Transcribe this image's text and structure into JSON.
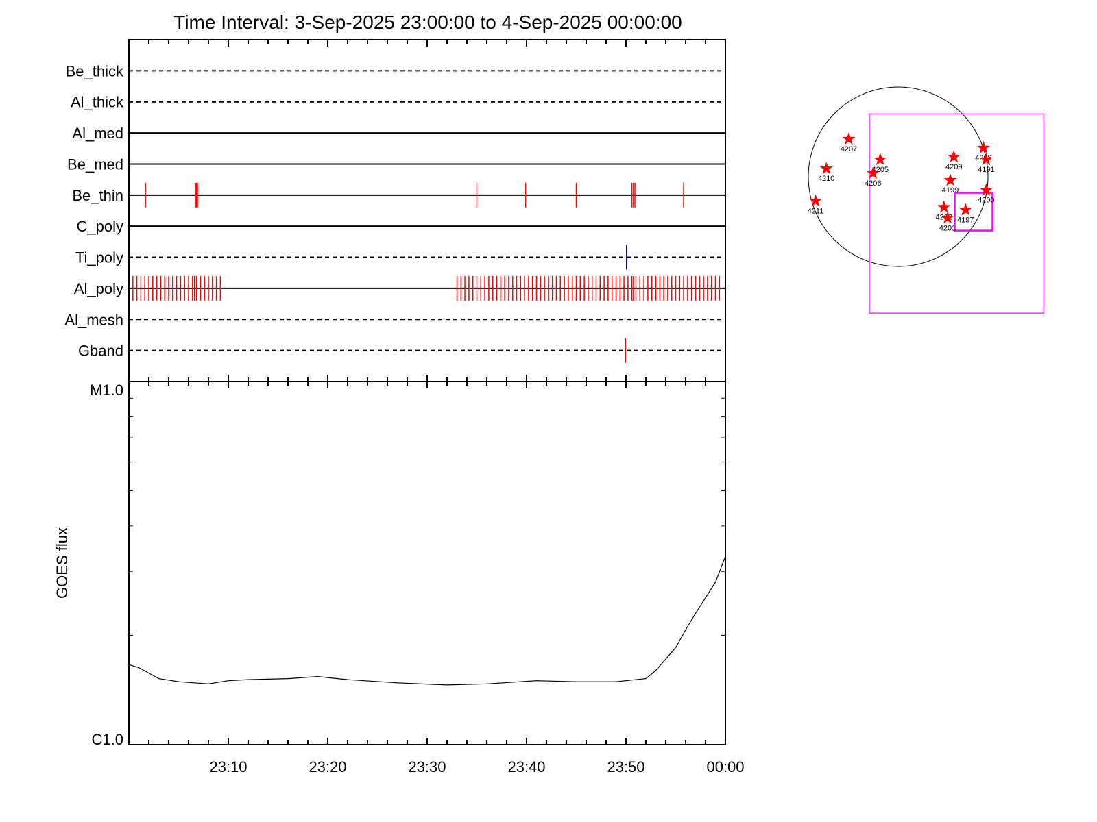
{
  "chart_data": [
    {
      "type": "events",
      "title": "Time Interval:  3-Sep-2025 23:00:00 to  4-Sep-2025 00:00:00",
      "xlim": [
        "23:00",
        "00:00"
      ],
      "xticks": [
        "23:10",
        "23:20",
        "23:30",
        "23:40",
        "23:50",
        "00:00"
      ],
      "x_minor_divisions": 5,
      "rows": [
        {
          "name": "Be_thick",
          "style": "dashed",
          "color": "#ff0000",
          "events": []
        },
        {
          "name": "Al_thick",
          "style": "dashed",
          "color": "#ff0000",
          "events": []
        },
        {
          "name": "Al_med",
          "style": "solid",
          "color": "#ff0000",
          "events": []
        },
        {
          "name": "Be_med",
          "style": "solid",
          "color": "#ff0000",
          "events": []
        },
        {
          "name": "Be_thin",
          "style": "solid",
          "color": "#ff0000",
          "events": [
            "23:01:40",
            "23:06:42",
            "23:06:48",
            "23:06:54",
            "23:35:00",
            "23:39:54",
            "23:45:00",
            "23:50:36",
            "23:50:45",
            "23:50:54",
            "23:55:48"
          ]
        },
        {
          "name": "C_poly",
          "style": "solid",
          "color": "#ff0000",
          "events": []
        },
        {
          "name": "Ti_poly",
          "style": "dashed",
          "color": "#0000ff",
          "events": [
            "23:50:03"
          ]
        },
        {
          "name": "Al_poly",
          "style": "solid",
          "color": "#ff0000",
          "events": [
            "23:00:24",
            "23:00:48",
            "23:01:12",
            "23:01:36",
            "23:02:00",
            "23:02:24",
            "23:02:48",
            "23:03:12",
            "23:03:36",
            "23:04:00",
            "23:04:24",
            "23:04:48",
            "23:05:12",
            "23:05:36",
            "23:06:00",
            "23:06:24",
            "23:06:36",
            "23:06:48",
            "23:07:12",
            "23:07:36",
            "23:08:00",
            "23:08:24",
            "23:08:48",
            "23:09:12",
            "23:33:00",
            "23:33:24",
            "23:33:48",
            "23:34:12",
            "23:34:36",
            "23:35:00",
            "23:35:24",
            "23:35:48",
            "23:36:12",
            "23:36:36",
            "23:37:00",
            "23:37:24",
            "23:37:48",
            "23:38:12",
            "23:38:36",
            "23:39:00",
            "23:39:24",
            "23:39:48",
            "23:40:12",
            "23:40:36",
            "23:41:00",
            "23:41:24",
            "23:41:48",
            "23:42:12",
            "23:42:36",
            "23:43:00",
            "23:43:24",
            "23:43:48",
            "23:44:12",
            "23:44:36",
            "23:45:00",
            "23:45:24",
            "23:45:48",
            "23:46:12",
            "23:46:36",
            "23:47:00",
            "23:47:24",
            "23:47:48",
            "23:48:12",
            "23:48:36",
            "23:49:00",
            "23:49:24",
            "23:49:48",
            "23:50:12",
            "23:50:36",
            "23:50:45",
            "23:51:00",
            "23:51:24",
            "23:51:48",
            "23:52:12",
            "23:52:36",
            "23:53:00",
            "23:53:24",
            "23:53:48",
            "23:54:12",
            "23:54:36",
            "23:55:00",
            "23:55:24",
            "23:55:48",
            "23:56:12",
            "23:56:36",
            "23:57:00",
            "23:57:24",
            "23:57:48",
            "23:58:12",
            "23:58:36",
            "23:59:00",
            "23:59:24"
          ]
        },
        {
          "name": "Al_mesh",
          "style": "dashed",
          "color": "#ff0000",
          "events": []
        },
        {
          "name": "Gband",
          "style": "dashed",
          "color": "#ff0000",
          "events": [
            "23:49:57"
          ]
        }
      ]
    },
    {
      "type": "line",
      "ylabel": "GOES flux",
      "ylog": true,
      "ylim": [
        1e-06,
        1e-05
      ],
      "yticks": [
        {
          "value": 1e-06,
          "label": "C1.0"
        },
        {
          "value": 1e-05,
          "label": "M1.0"
        }
      ],
      "yminorticks": [
        2e-06,
        3e-06,
        4e-06,
        5e-06,
        6e-06,
        7e-06,
        8e-06,
        9e-06
      ],
      "xlim": [
        "23:00",
        "00:00"
      ],
      "xticks": [
        "23:10",
        "23:20",
        "23:30",
        "23:40",
        "23:50",
        "00:00"
      ],
      "x_minor_divisions": 5,
      "color": "#000000",
      "x": [
        "23:00",
        "23:01",
        "23:03",
        "23:05",
        "23:08",
        "23:10",
        "23:12",
        "23:16",
        "23:19",
        "23:22",
        "23:27",
        "23:32",
        "23:36",
        "23:41",
        "23:45",
        "23:49",
        "23:52",
        "23:53",
        "23:55",
        "23:56",
        "23:57",
        "23:59",
        "00:00"
      ],
      "values": [
        1.66e-06,
        1.63e-06,
        1.52e-06,
        1.49e-06,
        1.47e-06,
        1.5e-06,
        1.51e-06,
        1.52e-06,
        1.54e-06,
        1.51e-06,
        1.48e-06,
        1.46e-06,
        1.47e-06,
        1.5e-06,
        1.49e-06,
        1.49e-06,
        1.52e-06,
        1.6e-06,
        1.85e-06,
        2.07e-06,
        2.3e-06,
        2.8e-06,
        3.3e-06
      ]
    },
    {
      "type": "disk",
      "xlim": [
        -1,
        1
      ],
      "ylim": [
        -1,
        1
      ],
      "color": "#ff0000",
      "box_color": "#ff00ff",
      "boxes": [
        {
          "x": [
            -0.32,
            1.62
          ],
          "y": [
            -1.52,
            0.7
          ]
        },
        {
          "x": [
            0.63,
            1.05
          ],
          "y": [
            -0.6,
            -0.18
          ]
        }
      ],
      "regions": [
        {
          "label": "4207",
          "x": -0.55,
          "y": 0.42
        },
        {
          "label": "4205",
          "x": -0.2,
          "y": 0.19
        },
        {
          "label": "4206",
          "x": -0.28,
          "y": 0.04
        },
        {
          "label": "4210",
          "x": -0.8,
          "y": 0.09
        },
        {
          "label": "4211",
          "x": -0.92,
          "y": -0.27
        },
        {
          "label": "4209",
          "x": 0.62,
          "y": 0.22
        },
        {
          "label": "4199",
          "x": 0.58,
          "y": -0.04
        },
        {
          "label": "4208",
          "x": 0.95,
          "y": 0.32
        },
        {
          "label": "4191",
          "x": 0.98,
          "y": 0.19
        },
        {
          "label": "4200",
          "x": 0.98,
          "y": -0.15
        },
        {
          "label": "4202",
          "x": 0.51,
          "y": -0.34
        },
        {
          "label": "4201",
          "x": 0.55,
          "y": -0.46
        },
        {
          "label": "4197",
          "x": 0.75,
          "y": -0.37
        }
      ]
    }
  ]
}
